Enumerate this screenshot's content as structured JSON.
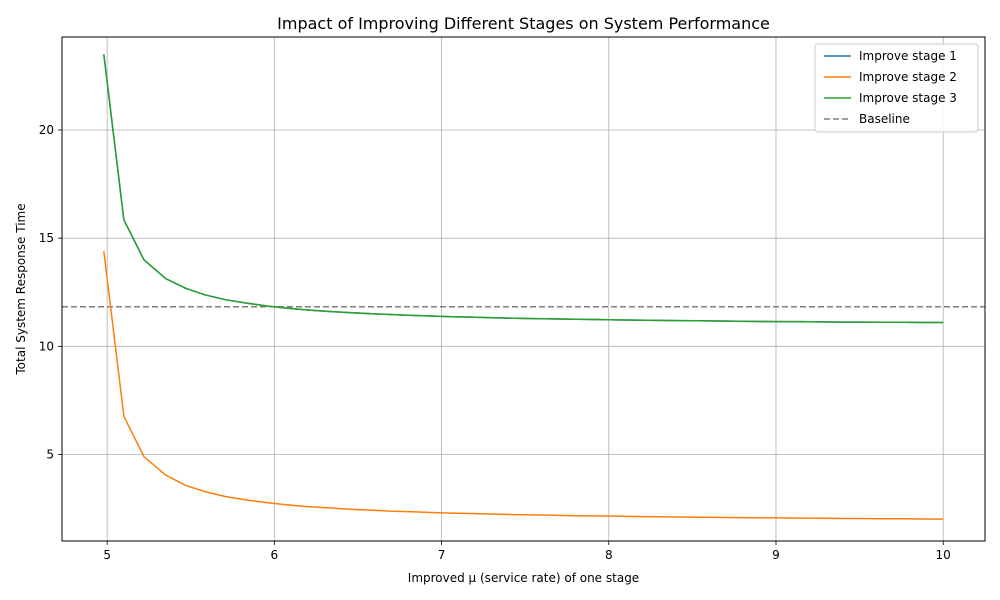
{
  "chart_data": {
    "type": "line",
    "title": "Impact of Improving Different Stages on System Performance",
    "xlabel": "Improved μ (service rate) of one stage",
    "ylabel": "Total System Response Time",
    "xlim": [
      4.73,
      10.25
    ],
    "ylim": [
      1.0,
      24.3
    ],
    "xticks": [
      5,
      6,
      7,
      8,
      9,
      10
    ],
    "yticks": [
      5,
      10,
      15,
      20
    ],
    "grid": true,
    "legend_position": "top-right",
    "x": [
      4.98,
      5.1,
      5.22,
      5.35,
      5.47,
      5.59,
      5.71,
      5.84,
      5.96,
      6.08,
      6.2,
      6.33,
      6.45,
      6.57,
      6.69,
      6.82,
      6.94,
      7.06,
      7.18,
      7.31,
      7.43,
      7.55,
      7.67,
      7.8,
      7.92,
      8.04,
      8.16,
      8.29,
      8.41,
      8.53,
      8.65,
      8.78,
      8.9,
      9.02,
      9.14,
      9.27,
      9.39,
      9.51,
      9.63,
      9.76,
      9.88,
      10.0
    ],
    "series": [
      {
        "name": "Improve stage 1",
        "color": "#1f77b4",
        "style": "solid",
        "values": [
          23.5,
          15.85,
          14.0,
          13.13,
          12.68,
          12.37,
          12.15,
          11.99,
          11.86,
          11.76,
          11.68,
          11.61,
          11.56,
          11.51,
          11.47,
          11.43,
          11.4,
          11.37,
          11.35,
          11.32,
          11.3,
          11.28,
          11.27,
          11.25,
          11.24,
          11.22,
          11.21,
          11.2,
          11.19,
          11.18,
          11.17,
          11.16,
          11.15,
          11.14,
          11.14,
          11.13,
          11.12,
          11.12,
          11.11,
          11.11,
          11.1,
          11.1
        ]
      },
      {
        "name": "Improve stage 2",
        "color": "#ff7f0e",
        "style": "solid",
        "values": [
          14.4,
          6.77,
          4.9,
          4.05,
          3.57,
          3.27,
          3.05,
          2.89,
          2.77,
          2.67,
          2.59,
          2.53,
          2.47,
          2.43,
          2.38,
          2.35,
          2.32,
          2.29,
          2.27,
          2.24,
          2.22,
          2.21,
          2.19,
          2.17,
          2.16,
          2.15,
          2.13,
          2.12,
          2.11,
          2.1,
          2.09,
          2.08,
          2.07,
          2.07,
          2.06,
          2.05,
          2.04,
          2.04,
          2.03,
          2.03,
          2.02,
          2.01
        ]
      },
      {
        "name": "Improve stage 3",
        "color": "#2ca02c",
        "style": "solid",
        "values": [
          23.5,
          15.85,
          14.0,
          13.13,
          12.68,
          12.37,
          12.15,
          11.99,
          11.86,
          11.76,
          11.68,
          11.61,
          11.56,
          11.51,
          11.47,
          11.43,
          11.4,
          11.37,
          11.35,
          11.32,
          11.3,
          11.28,
          11.27,
          11.25,
          11.24,
          11.22,
          11.21,
          11.2,
          11.19,
          11.18,
          11.17,
          11.16,
          11.15,
          11.14,
          11.14,
          11.13,
          11.12,
          11.12,
          11.11,
          11.11,
          11.1,
          11.1
        ]
      }
    ],
    "reference_lines": [
      {
        "name": "Baseline",
        "y": 11.83,
        "color": "#7f7f7f",
        "style": "dashed"
      }
    ],
    "legend": [
      "Improve stage 1",
      "Improve stage 2",
      "Improve stage 3",
      "Baseline"
    ]
  }
}
